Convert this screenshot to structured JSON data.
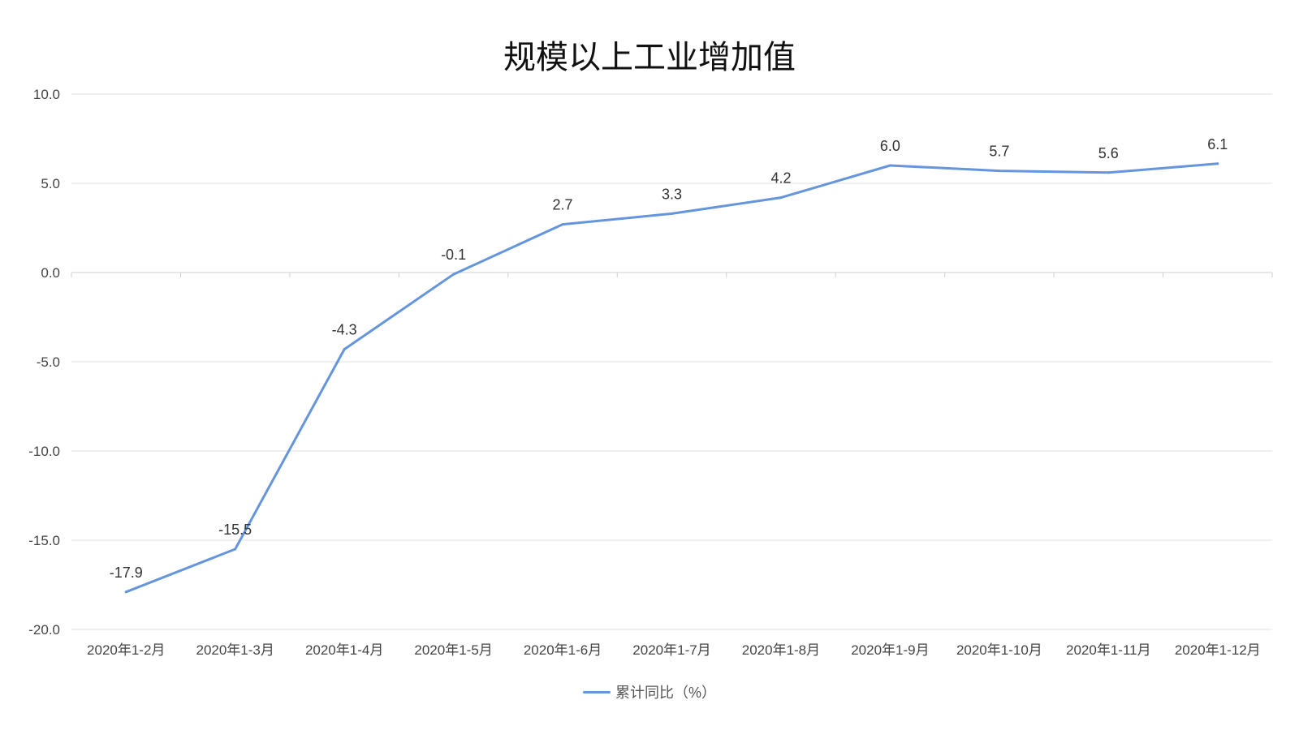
{
  "chart_data": {
    "type": "line",
    "title": "规模以上工业增加值",
    "categories": [
      "2020年1-2月",
      "2020年1-3月",
      "2020年1-4月",
      "2020年1-5月",
      "2020年1-6月",
      "2020年1-7月",
      "2020年1-8月",
      "2020年1-9月",
      "2020年1-10月",
      "2020年1-11月",
      "2020年1-12月"
    ],
    "series": [
      {
        "name": "累计同比（%）",
        "values": [
          -17.9,
          -15.5,
          -4.3,
          -0.1,
          2.7,
          3.3,
          4.2,
          6.0,
          5.7,
          5.6,
          6.1
        ],
        "color": "#6495dd"
      }
    ],
    "yticks": [
      "10.0",
      "5.0",
      "0.0",
      "-5.0",
      "-10.0",
      "-15.0",
      "-20.0"
    ],
    "ylim": [
      -20,
      10
    ],
    "grid": true,
    "legend_position": "bottom"
  }
}
